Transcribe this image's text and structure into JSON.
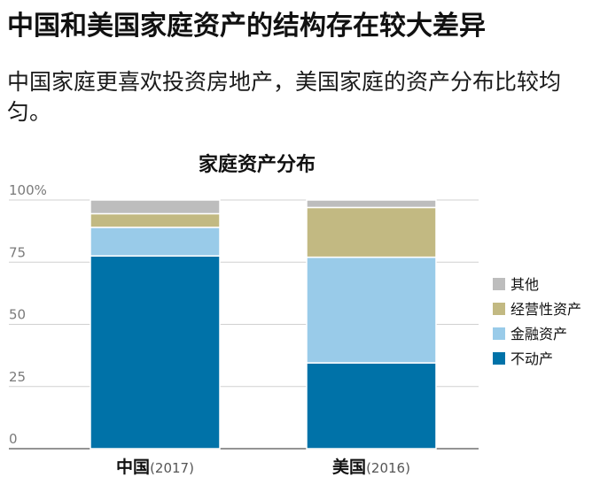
{
  "headline": "中国和美国家庭资产的结构存在较大差异",
  "subheadline": "中国家庭更喜欢投资房地产，美国家庭的资产分布比较均匀。",
  "chart_data": {
    "type": "bar",
    "stacked": true,
    "title": "家庭资产分布",
    "xlabel": "",
    "ylabel": "",
    "ylim": [
      0,
      100
    ],
    "yticks": [
      0,
      25,
      50,
      75,
      100
    ],
    "ytick_labels": [
      "0",
      "25",
      "50",
      "75",
      "100%"
    ],
    "categories": [
      "中国",
      "美国"
    ],
    "category_notes": [
      "(2017)",
      "(2016)"
    ],
    "grid": true,
    "legend_position": "right",
    "series": [
      {
        "name": "不动产",
        "color": "#0072a8",
        "values": [
          77.5,
          34.5
        ]
      },
      {
        "name": "金融资产",
        "color": "#99cbe9",
        "values": [
          11.5,
          42.5
        ]
      },
      {
        "name": "经营性资产",
        "color": "#c2b982",
        "values": [
          5.5,
          20
        ]
      },
      {
        "name": "其他",
        "color": "#bdbdbd",
        "values": [
          5.5,
          3
        ]
      }
    ]
  }
}
